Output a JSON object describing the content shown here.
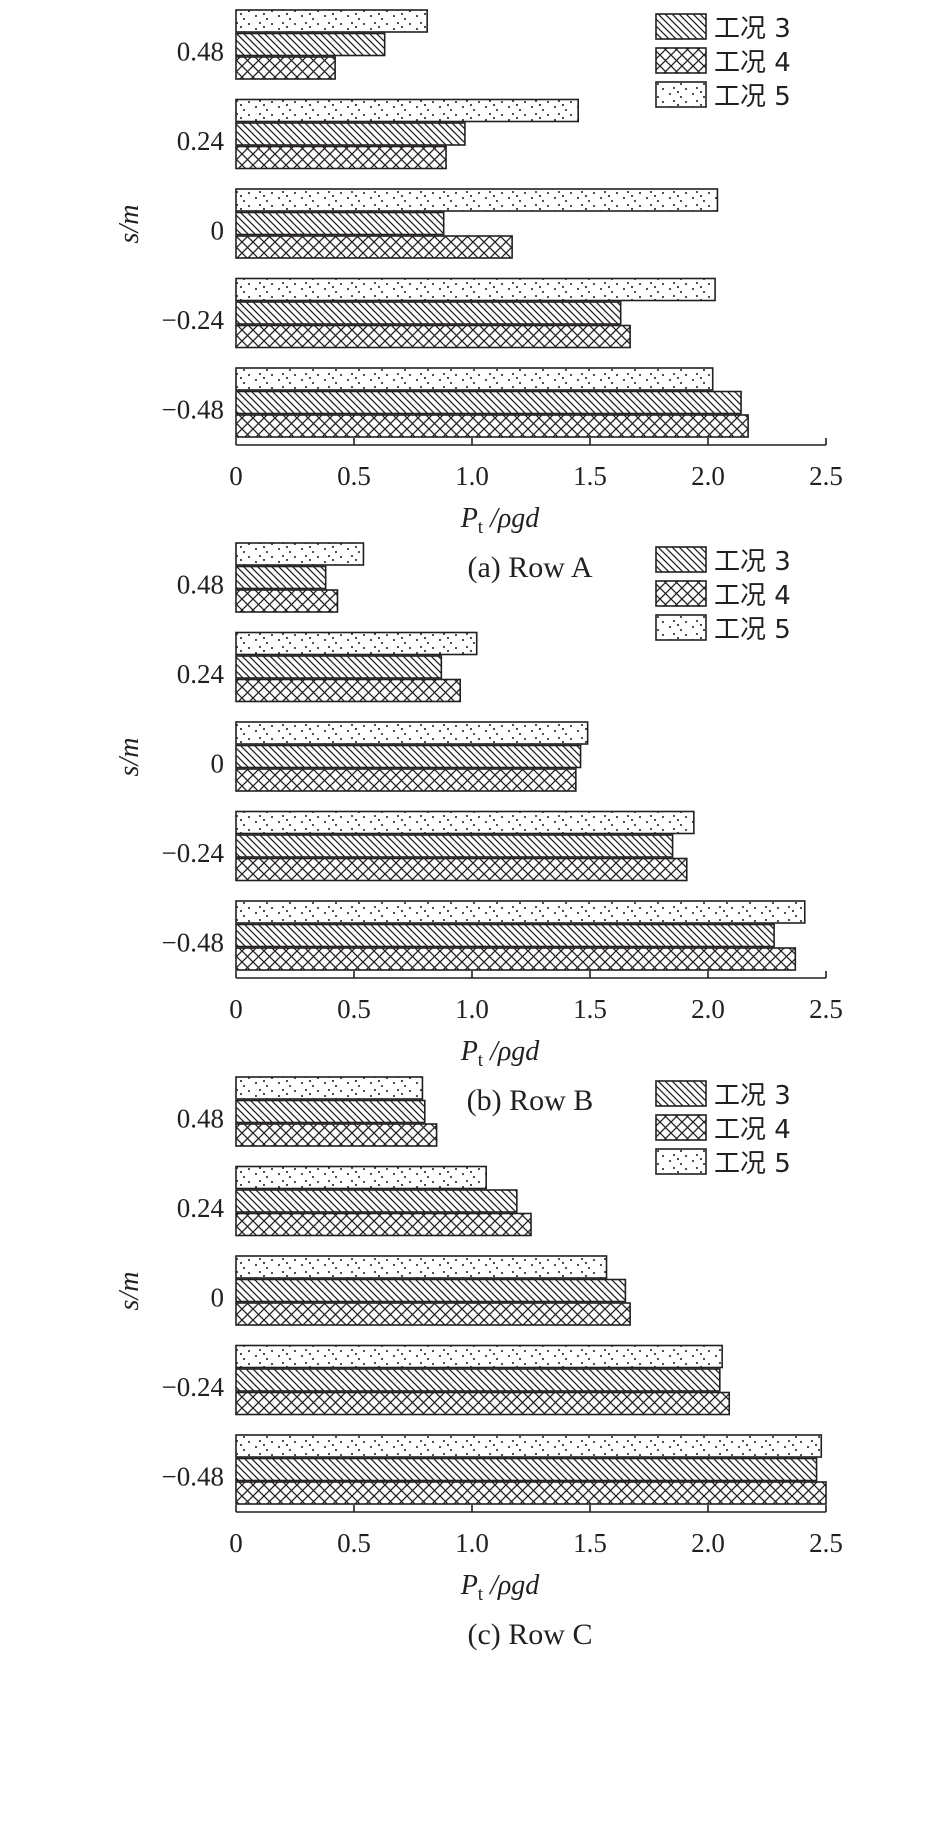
{
  "figure": {
    "colors": {
      "ink": "#231f20",
      "background": "#ffffff"
    },
    "pattern_names": [
      "diagonal-hatch",
      "cross-hatch",
      "dots"
    ]
  },
  "chart_data": [
    {
      "type": "bar",
      "orientation": "horizontal",
      "caption": "(a) Row A",
      "xlabel": "P",
      "xlabel_subscript": "t",
      "xlabel_suffix": " /ρgd",
      "ylabel": "s/m",
      "xlim": [
        0,
        2.5
      ],
      "xticks": [
        "0",
        "0.5",
        "1.0",
        "1.5",
        "2.0",
        "2.5"
      ],
      "categories": [
        "0.48",
        "0.24",
        "0",
        "−0.24",
        "−0.48"
      ],
      "series": [
        {
          "name": "工况 3",
          "pattern": "diagonal-hatch",
          "values": [
            0.63,
            0.97,
            0.88,
            1.63,
            2.14
          ]
        },
        {
          "name": "工况 4",
          "pattern": "cross-hatch",
          "values": [
            0.42,
            0.89,
            1.17,
            1.67,
            2.17
          ]
        },
        {
          "name": "工况 5",
          "pattern": "dots",
          "values": [
            0.81,
            1.45,
            2.04,
            2.03,
            2.02
          ]
        }
      ]
    },
    {
      "type": "bar",
      "orientation": "horizontal",
      "caption": "(b) Row B",
      "xlabel": "P",
      "xlabel_subscript": "t",
      "xlabel_suffix": " /ρgd",
      "ylabel": "s/m",
      "xlim": [
        0,
        2.5
      ],
      "xticks": [
        "0",
        "0.5",
        "1.0",
        "1.5",
        "2.0",
        "2.5"
      ],
      "categories": [
        "0.48",
        "0.24",
        "0",
        "−0.24",
        "−0.48"
      ],
      "series": [
        {
          "name": "工况 3",
          "pattern": "diagonal-hatch",
          "values": [
            0.38,
            0.87,
            1.46,
            1.85,
            2.28
          ]
        },
        {
          "name": "工况 4",
          "pattern": "cross-hatch",
          "values": [
            0.43,
            0.95,
            1.44,
            1.91,
            2.37
          ]
        },
        {
          "name": "工况 5",
          "pattern": "dots",
          "values": [
            0.54,
            1.02,
            1.49,
            1.94,
            2.41
          ]
        }
      ]
    },
    {
      "type": "bar",
      "orientation": "horizontal",
      "caption": "(c) Row C",
      "xlabel": "P",
      "xlabel_subscript": "t",
      "xlabel_suffix": " /ρgd",
      "ylabel": "s/m",
      "xlim": [
        0,
        2.5
      ],
      "xticks": [
        "0",
        "0.5",
        "1.0",
        "1.5",
        "2.0",
        "2.5"
      ],
      "categories": [
        "0.48",
        "0.24",
        "0",
        "−0.24",
        "−0.48"
      ],
      "series": [
        {
          "name": "工况 3",
          "pattern": "diagonal-hatch",
          "values": [
            0.8,
            1.19,
            1.65,
            2.05,
            2.46
          ]
        },
        {
          "name": "工况 4",
          "pattern": "cross-hatch",
          "values": [
            0.85,
            1.25,
            1.67,
            2.09,
            2.5
          ]
        },
        {
          "name": "工况 5",
          "pattern": "dots",
          "values": [
            0.79,
            1.06,
            1.57,
            2.06,
            2.48
          ]
        }
      ]
    }
  ]
}
